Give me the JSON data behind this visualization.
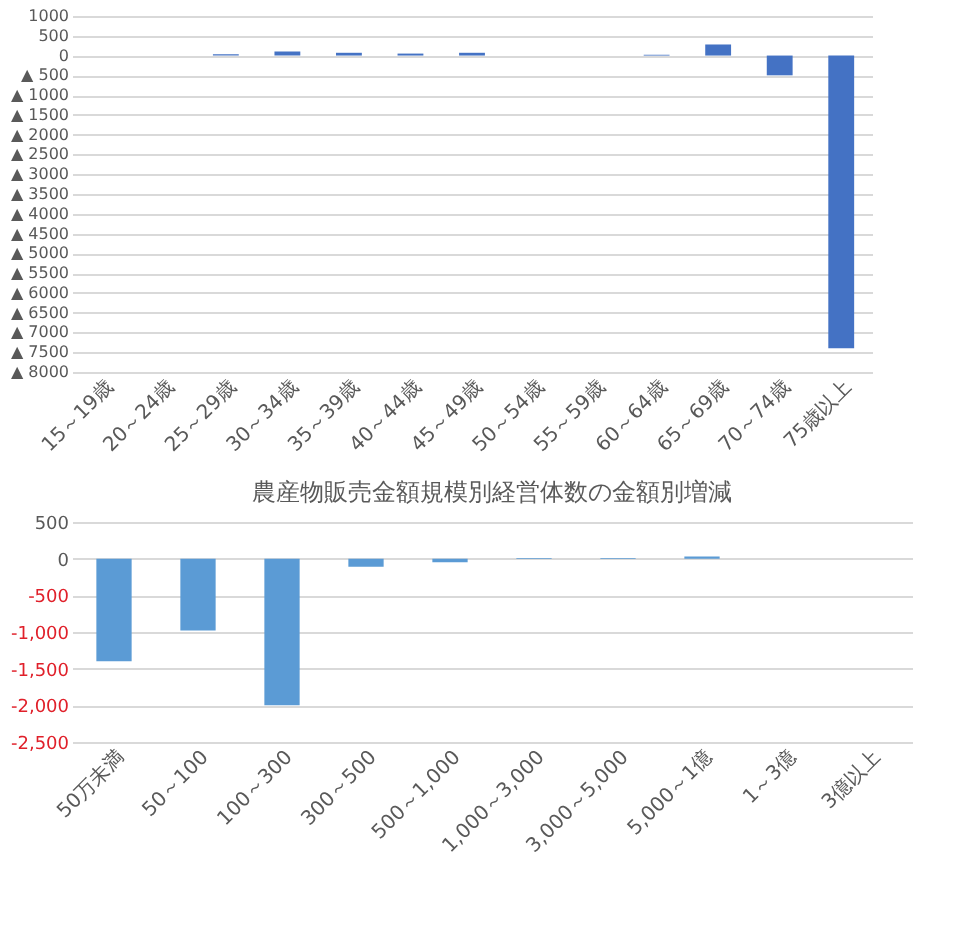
{
  "chart_data": [
    {
      "type": "bar",
      "categories": [
        "15～19歳",
        "20～24歳",
        "25～29歳",
        "30～34歳",
        "35～39歳",
        "40～44歳",
        "45～49歳",
        "50～54歳",
        "55～59歳",
        "60～64歳",
        "65～69歳",
        "70～74歳",
        "75歳以上"
      ],
      "values": [
        0,
        0,
        30,
        100,
        70,
        50,
        70,
        0,
        0,
        20,
        280,
        -500,
        -7400
      ],
      "color": "#4472c4",
      "ylim": [
        -8000,
        1000
      ],
      "yticks": [
        1000,
        500,
        0,
        {
          "value": -500,
          "label": "▲ 500"
        },
        {
          "value": -1000,
          "label": "▲ 1000"
        },
        {
          "value": -1500,
          "label": "▲ 1500"
        },
        {
          "value": -2000,
          "label": "▲ 2000"
        },
        {
          "value": -2500,
          "label": "▲ 2500"
        },
        {
          "value": -3000,
          "label": "▲ 3000"
        },
        {
          "value": -3500,
          "label": "▲ 3500"
        },
        {
          "value": -4000,
          "label": "▲ 4000"
        },
        {
          "value": -4500,
          "label": "▲ 4500"
        },
        {
          "value": -5000,
          "label": "▲ 5000"
        },
        {
          "value": -5500,
          "label": "▲ 5500"
        },
        {
          "value": -6000,
          "label": "▲ 6000"
        },
        {
          "value": -6500,
          "label": "▲ 6500"
        },
        {
          "value": -7000,
          "label": "▲ 7000"
        },
        {
          "value": -7500,
          "label": "▲ 7500"
        },
        {
          "value": -8000,
          "label": "▲ 8000"
        }
      ],
      "grid": "y"
    },
    {
      "type": "bar",
      "title": "農産物販売金額規模別経営体数の金額別増減",
      "categories": [
        "50万未満",
        "50～100",
        "100～300",
        "300～500",
        "500～1,000",
        "1,000～3,000",
        "3,000～5,000",
        "5,000～1億",
        "1～3億",
        "3億以上"
      ],
      "values": [
        -1400,
        -980,
        -2000,
        -110,
        -50,
        10,
        10,
        30,
        0,
        0
      ],
      "color": "#5b9bd5",
      "ylim": [
        -2500,
        500
      ],
      "yticks": [
        500,
        0,
        {
          "value": -500,
          "label": "-500"
        },
        {
          "value": -1000,
          "label": "-1,000"
        },
        {
          "value": -1500,
          "label": "-1,500"
        },
        {
          "value": -2000,
          "label": "-2,000"
        },
        {
          "value": -2500,
          "label": "-2,500"
        }
      ],
      "grid": "y"
    }
  ]
}
